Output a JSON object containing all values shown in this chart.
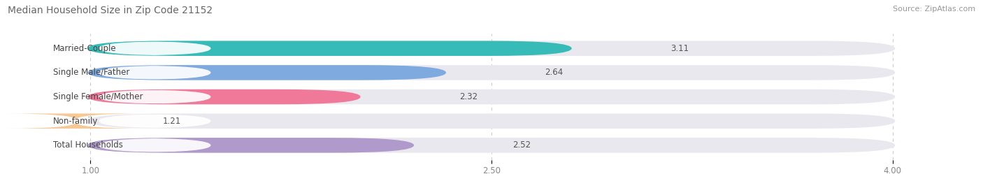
{
  "title": "Median Household Size in Zip Code 21152",
  "source": "Source: ZipAtlas.com",
  "categories": [
    "Married-Couple",
    "Single Male/Father",
    "Single Female/Mother",
    "Non-family",
    "Total Households"
  ],
  "values": [
    3.11,
    2.64,
    2.32,
    1.21,
    2.52
  ],
  "bar_colors": [
    "#36bbb8",
    "#7eaae0",
    "#f07898",
    "#f5c896",
    "#b09acc"
  ],
  "bar_bg_color": "#e8e8ee",
  "xmin": 0.68,
  "xmax": 4.32,
  "xlim": [
    0.68,
    4.32
  ],
  "xticks": [
    1.0,
    2.5,
    4.0
  ],
  "xtick_labels": [
    "1.00",
    "2.50",
    "4.00"
  ],
  "title_fontsize": 10,
  "source_fontsize": 8,
  "label_fontsize": 8.5,
  "value_fontsize": 8.5,
  "background_color": "#ffffff",
  "plot_bg_color": "#ffffff",
  "bar_height": 0.62,
  "bar_gap": 0.38
}
